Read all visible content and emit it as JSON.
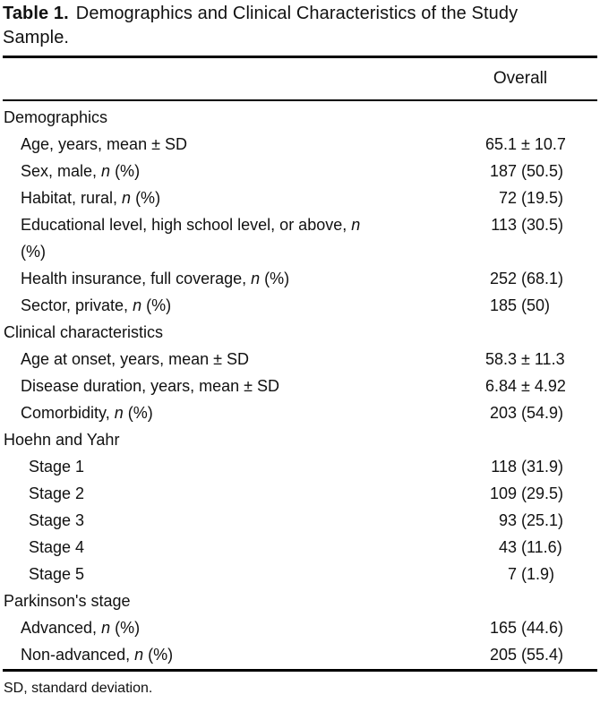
{
  "title": {
    "label": "Table 1.",
    "line1": "Demographics and Clinical Characteristics of the Study",
    "line2": "Sample."
  },
  "table": {
    "column_header": "Overall",
    "sections": [
      {
        "header": "Demographics",
        "items": [
          {
            "label": "Age, years, mean ± SD",
            "num": "65.1",
            "rest": "± 10.7"
          },
          {
            "label": "Sex, male, *n* (%)",
            "num": "187",
            "rest": "(50.5)"
          },
          {
            "label": "Habitat, rural, *n* (%)",
            "num": "72",
            "rest": "(19.5)"
          },
          {
            "label": "Educational level, high school level, or above, *n*",
            "label2": "(%)",
            "num": "113",
            "rest": "(30.5)"
          },
          {
            "label": "Health insurance, full coverage, *n* (%)",
            "num": "252",
            "rest": "(68.1)"
          },
          {
            "label": "Sector, private, *n* (%)",
            "num": "185",
            "rest": "(50)"
          }
        ]
      },
      {
        "header": "Clinical characteristics",
        "items": [
          {
            "label": "Age at onset, years, mean ± SD",
            "num": "58.3",
            "rest": "± 11.3"
          },
          {
            "label": "Disease duration, years, mean ± SD",
            "num": "6.84",
            "rest": "± 4.92"
          },
          {
            "label": "Comorbidity, *n* (%)",
            "num": "203",
            "rest": "(54.9)"
          }
        ]
      },
      {
        "header": "Hoehn and Yahr",
        "indent": "deep",
        "items": [
          {
            "label": "Stage 1",
            "num": "118",
            "rest": "(31.9)"
          },
          {
            "label": "Stage 2",
            "num": "109",
            "rest": "(29.5)"
          },
          {
            "label": "Stage 3",
            "num": "93",
            "rest": "(25.1)"
          },
          {
            "label": "Stage 4",
            "num": "43",
            "rest": "(11.6)"
          },
          {
            "label": "Stage 5",
            "num": "7",
            "rest": "(1.9)"
          }
        ]
      },
      {
        "header": "Parkinson's stage",
        "items": [
          {
            "label": "Advanced, *n* (%)",
            "num": "165",
            "rest": "(44.6)"
          },
          {
            "label": "Non-advanced, *n* (%)",
            "num": "205",
            "rest": "(55.4)"
          }
        ]
      }
    ]
  },
  "footnote": "SD, standard deviation.",
  "colors": {
    "text": "#111111",
    "rule": "#000000",
    "background": "#ffffff"
  }
}
